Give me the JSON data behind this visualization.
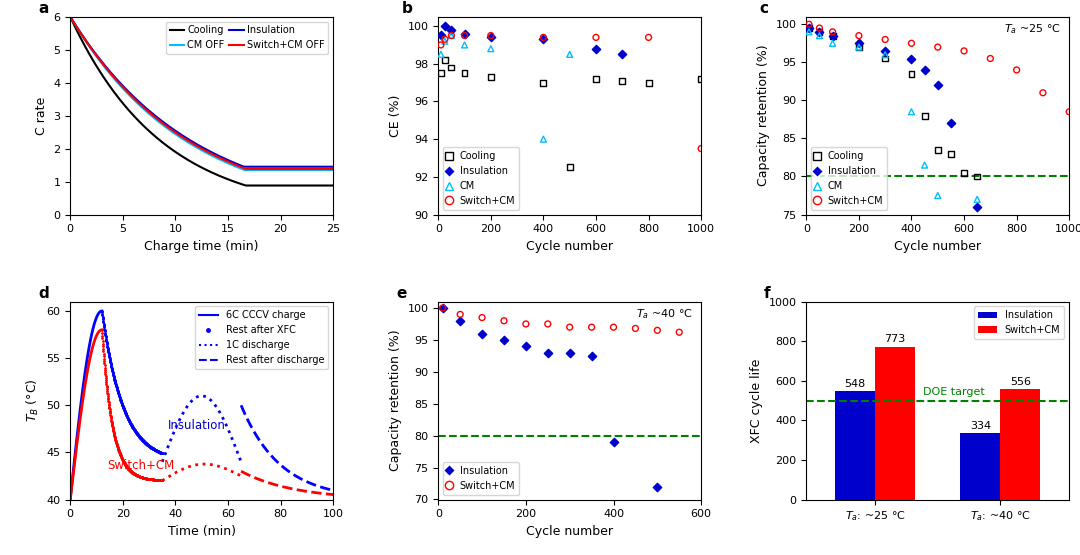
{
  "panel_a": {
    "title": "a",
    "xlabel": "Charge time (min)",
    "ylabel": "C rate",
    "xlim": [
      0,
      25
    ],
    "ylim": [
      0,
      6
    ],
    "yticks": [
      0,
      1,
      2,
      3,
      4,
      5,
      6
    ],
    "xticks": [
      0,
      5,
      10,
      15,
      20,
      25
    ],
    "legend_labels": [
      "Cooling",
      "CM OFF",
      "Insulation",
      "Switch+CM OFF"
    ],
    "legend_colors": [
      "#000000",
      "#00BFFF",
      "#0000CD",
      "#FF0000"
    ]
  },
  "panel_b": {
    "title": "b",
    "xlabel": "Cycle number",
    "ylabel": "CE (%)",
    "xlim": [
      0,
      1000
    ],
    "ylim": [
      90,
      100.5
    ],
    "yticks": [
      90,
      92,
      94,
      96,
      98,
      100
    ],
    "xticks": [
      0,
      200,
      400,
      600,
      800,
      1000
    ],
    "cool_x": [
      10,
      25,
      50,
      100,
      200,
      400,
      500,
      600,
      700,
      800,
      1000
    ],
    "cool_y": [
      97.5,
      98.2,
      97.8,
      97.5,
      97.3,
      97.0,
      92.5,
      97.2,
      97.1,
      97.0,
      97.2
    ],
    "ins_x": [
      10,
      25,
      50,
      100,
      200,
      400,
      600,
      700
    ],
    "ins_y": [
      99.5,
      100.0,
      99.8,
      99.6,
      99.4,
      99.3,
      98.8,
      98.5
    ],
    "cm_x": [
      10,
      25,
      50,
      100,
      200,
      400,
      500
    ],
    "cm_y": [
      98.5,
      99.2,
      99.5,
      99.0,
      98.8,
      94.0,
      98.5
    ],
    "sw_x": [
      10,
      25,
      50,
      100,
      200,
      400,
      600,
      800,
      1000
    ],
    "sw_y": [
      99.0,
      99.3,
      99.5,
      99.5,
      99.5,
      99.4,
      99.4,
      99.4,
      93.5
    ]
  },
  "panel_c": {
    "title": "c",
    "xlabel": "Cycle number",
    "ylabel": "Capacity retention (%)",
    "xlim": [
      0,
      1000
    ],
    "ylim": [
      75,
      101
    ],
    "yticks": [
      75,
      80,
      85,
      90,
      95,
      100
    ],
    "xticks": [
      0,
      200,
      400,
      600,
      800,
      1000
    ],
    "annotation": "T_a ~25 °C",
    "doe_line": 80,
    "cool_x": [
      10,
      50,
      100,
      200,
      300,
      400,
      450,
      500,
      550,
      600,
      650
    ],
    "cool_y": [
      99.5,
      99.0,
      98.5,
      97.0,
      95.5,
      93.5,
      88.0,
      83.5,
      83.0,
      80.5,
      80.0
    ],
    "ins_x": [
      10,
      50,
      100,
      200,
      300,
      400,
      450,
      500,
      550,
      650
    ],
    "ins_y": [
      99.5,
      99.0,
      98.5,
      97.5,
      96.5,
      95.5,
      94.0,
      92.0,
      87.0,
      76.0
    ],
    "cm_x": [
      10,
      50,
      100,
      200,
      300,
      400,
      450,
      500,
      650
    ],
    "cm_y": [
      99.0,
      98.5,
      97.5,
      97.0,
      96.0,
      88.5,
      81.5,
      77.5,
      77.0
    ],
    "sw_x": [
      10,
      50,
      100,
      200,
      300,
      400,
      500,
      600,
      700,
      800,
      900,
      1000
    ],
    "sw_y": [
      100.0,
      99.5,
      99.0,
      98.5,
      98.0,
      97.5,
      97.0,
      96.5,
      95.5,
      94.0,
      91.0,
      88.5
    ]
  },
  "panel_d": {
    "title": "d",
    "xlabel": "Time (min)",
    "ylabel": "T_B (C)",
    "xlim": [
      0,
      100
    ],
    "ylim": [
      40,
      61
    ],
    "yticks": [
      40,
      45,
      50,
      55,
      60
    ],
    "xticks": [
      0,
      20,
      40,
      60,
      80,
      100
    ],
    "legend_labels": [
      "6C CCCV charge",
      "Rest after XFC",
      "1C discharge",
      "Rest after discharge"
    ],
    "ins_label": "Insulation",
    "sw_label": "Switch+CM",
    "ins_color": "#0000CD",
    "sw_color": "#FF0000"
  },
  "panel_e": {
    "title": "e",
    "xlabel": "Cycle number",
    "ylabel": "Capacity retention (%)",
    "xlim": [
      0,
      600
    ],
    "ylim": [
      70,
      101
    ],
    "yticks": [
      70,
      75,
      80,
      85,
      90,
      95,
      100
    ],
    "xticks": [
      0,
      200,
      400,
      600
    ],
    "annotation": "T_a ~40 °C",
    "doe_line": 80,
    "ins_x": [
      10,
      50,
      100,
      150,
      200,
      250,
      300,
      350,
      400,
      500
    ],
    "ins_y": [
      100.0,
      98.0,
      96.0,
      95.0,
      94.0,
      93.0,
      93.0,
      92.5,
      79.0,
      72.0
    ],
    "sw_x": [
      10,
      50,
      100,
      150,
      200,
      250,
      300,
      350,
      400,
      450,
      500,
      550
    ],
    "sw_y": [
      100.0,
      99.0,
      98.5,
      98.0,
      97.5,
      97.5,
      97.0,
      97.0,
      97.0,
      96.8,
      96.5,
      96.2
    ]
  },
  "panel_f": {
    "title": "f",
    "ylabel": "XFC cycle life",
    "ylim": [
      0,
      1000
    ],
    "yticks": [
      0,
      200,
      400,
      600,
      800,
      1000
    ],
    "xtick_labels": [
      "T_a: ~25 °C",
      "T_a: ~40 °C"
    ],
    "insulation_vals": [
      548,
      334
    ],
    "switch_cm_vals": [
      773,
      556
    ],
    "ins_color": "#0000CD",
    "sw_color": "#FF0000",
    "doe_line": 500,
    "doe_label": "DOE target",
    "doe_color": "#008000"
  }
}
